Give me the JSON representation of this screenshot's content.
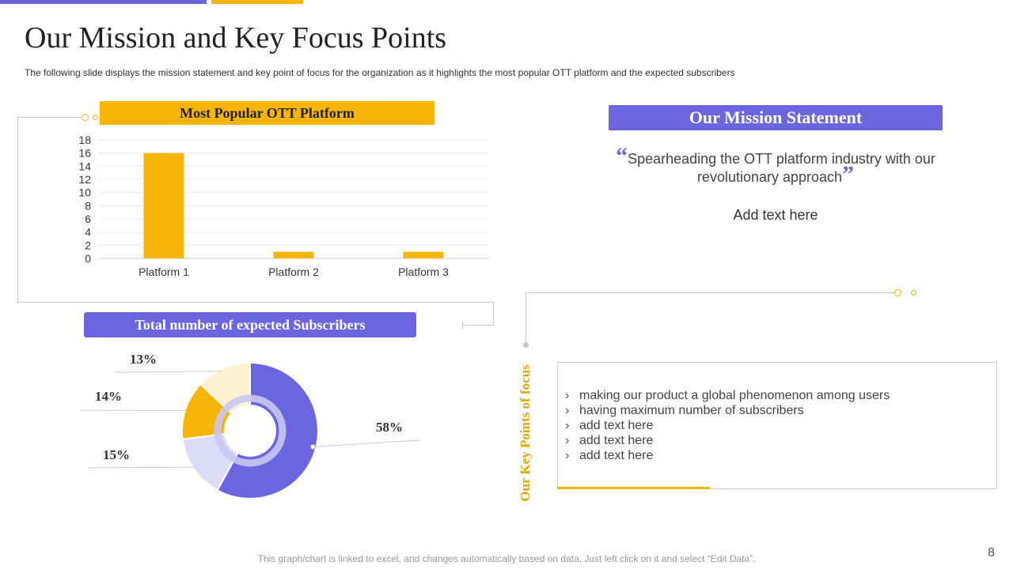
{
  "slide": {
    "title": "Our Mission and Key Focus Points",
    "subtitle": "The following  slide displays the mission statement and key point of focus for the organization as it highlights the most popular OTT  platform and the expected subscribers",
    "footnote": "This graph/chart is linked to excel, and changes automatically based on data. Just left click on it and select “Edit Data”.",
    "page_number": "8"
  },
  "colors": {
    "purple": "#6b66e0",
    "yellow": "#f7b50a",
    "light_purple": "#dcdcf8",
    "light_yellow": "#fdf1d2"
  },
  "bar_section": {
    "heading": "Most Popular OTT Platform"
  },
  "donut_section": {
    "heading": "Total number of  expected Subscribers"
  },
  "mission": {
    "heading": "Our Mission Statement",
    "quote": "Spearheading the OTT platform industry with our revolutionary approach",
    "open_quote": "“",
    "close_quote": "”",
    "add_text": "Add text here"
  },
  "focus": {
    "label": "Our Key Points of focus",
    "bullet_icon": "chevron-right-icon",
    "items": [
      "making our product a global phenomenon among users",
      "having maximum number of subscribers",
      "add text here",
      "add text here",
      "add text here"
    ]
  },
  "chart_data": [
    {
      "type": "bar",
      "categories": [
        "Platform 1",
        "Platform 2",
        "Platform 3"
      ],
      "values": [
        16,
        1,
        1
      ],
      "ylim": [
        0,
        18
      ],
      "yticks": [
        0,
        2,
        4,
        6,
        8,
        10,
        12,
        14,
        16,
        18
      ],
      "grid": true,
      "color": "#f7b50a"
    },
    {
      "type": "pie",
      "donut": true,
      "values": [
        58,
        15,
        14,
        13
      ],
      "labels": [
        "58%",
        "15%",
        "14%",
        "13%"
      ],
      "colors": [
        "#6b66e0",
        "#dcdcf8",
        "#f7b50a",
        "#fdf1d2"
      ]
    }
  ]
}
